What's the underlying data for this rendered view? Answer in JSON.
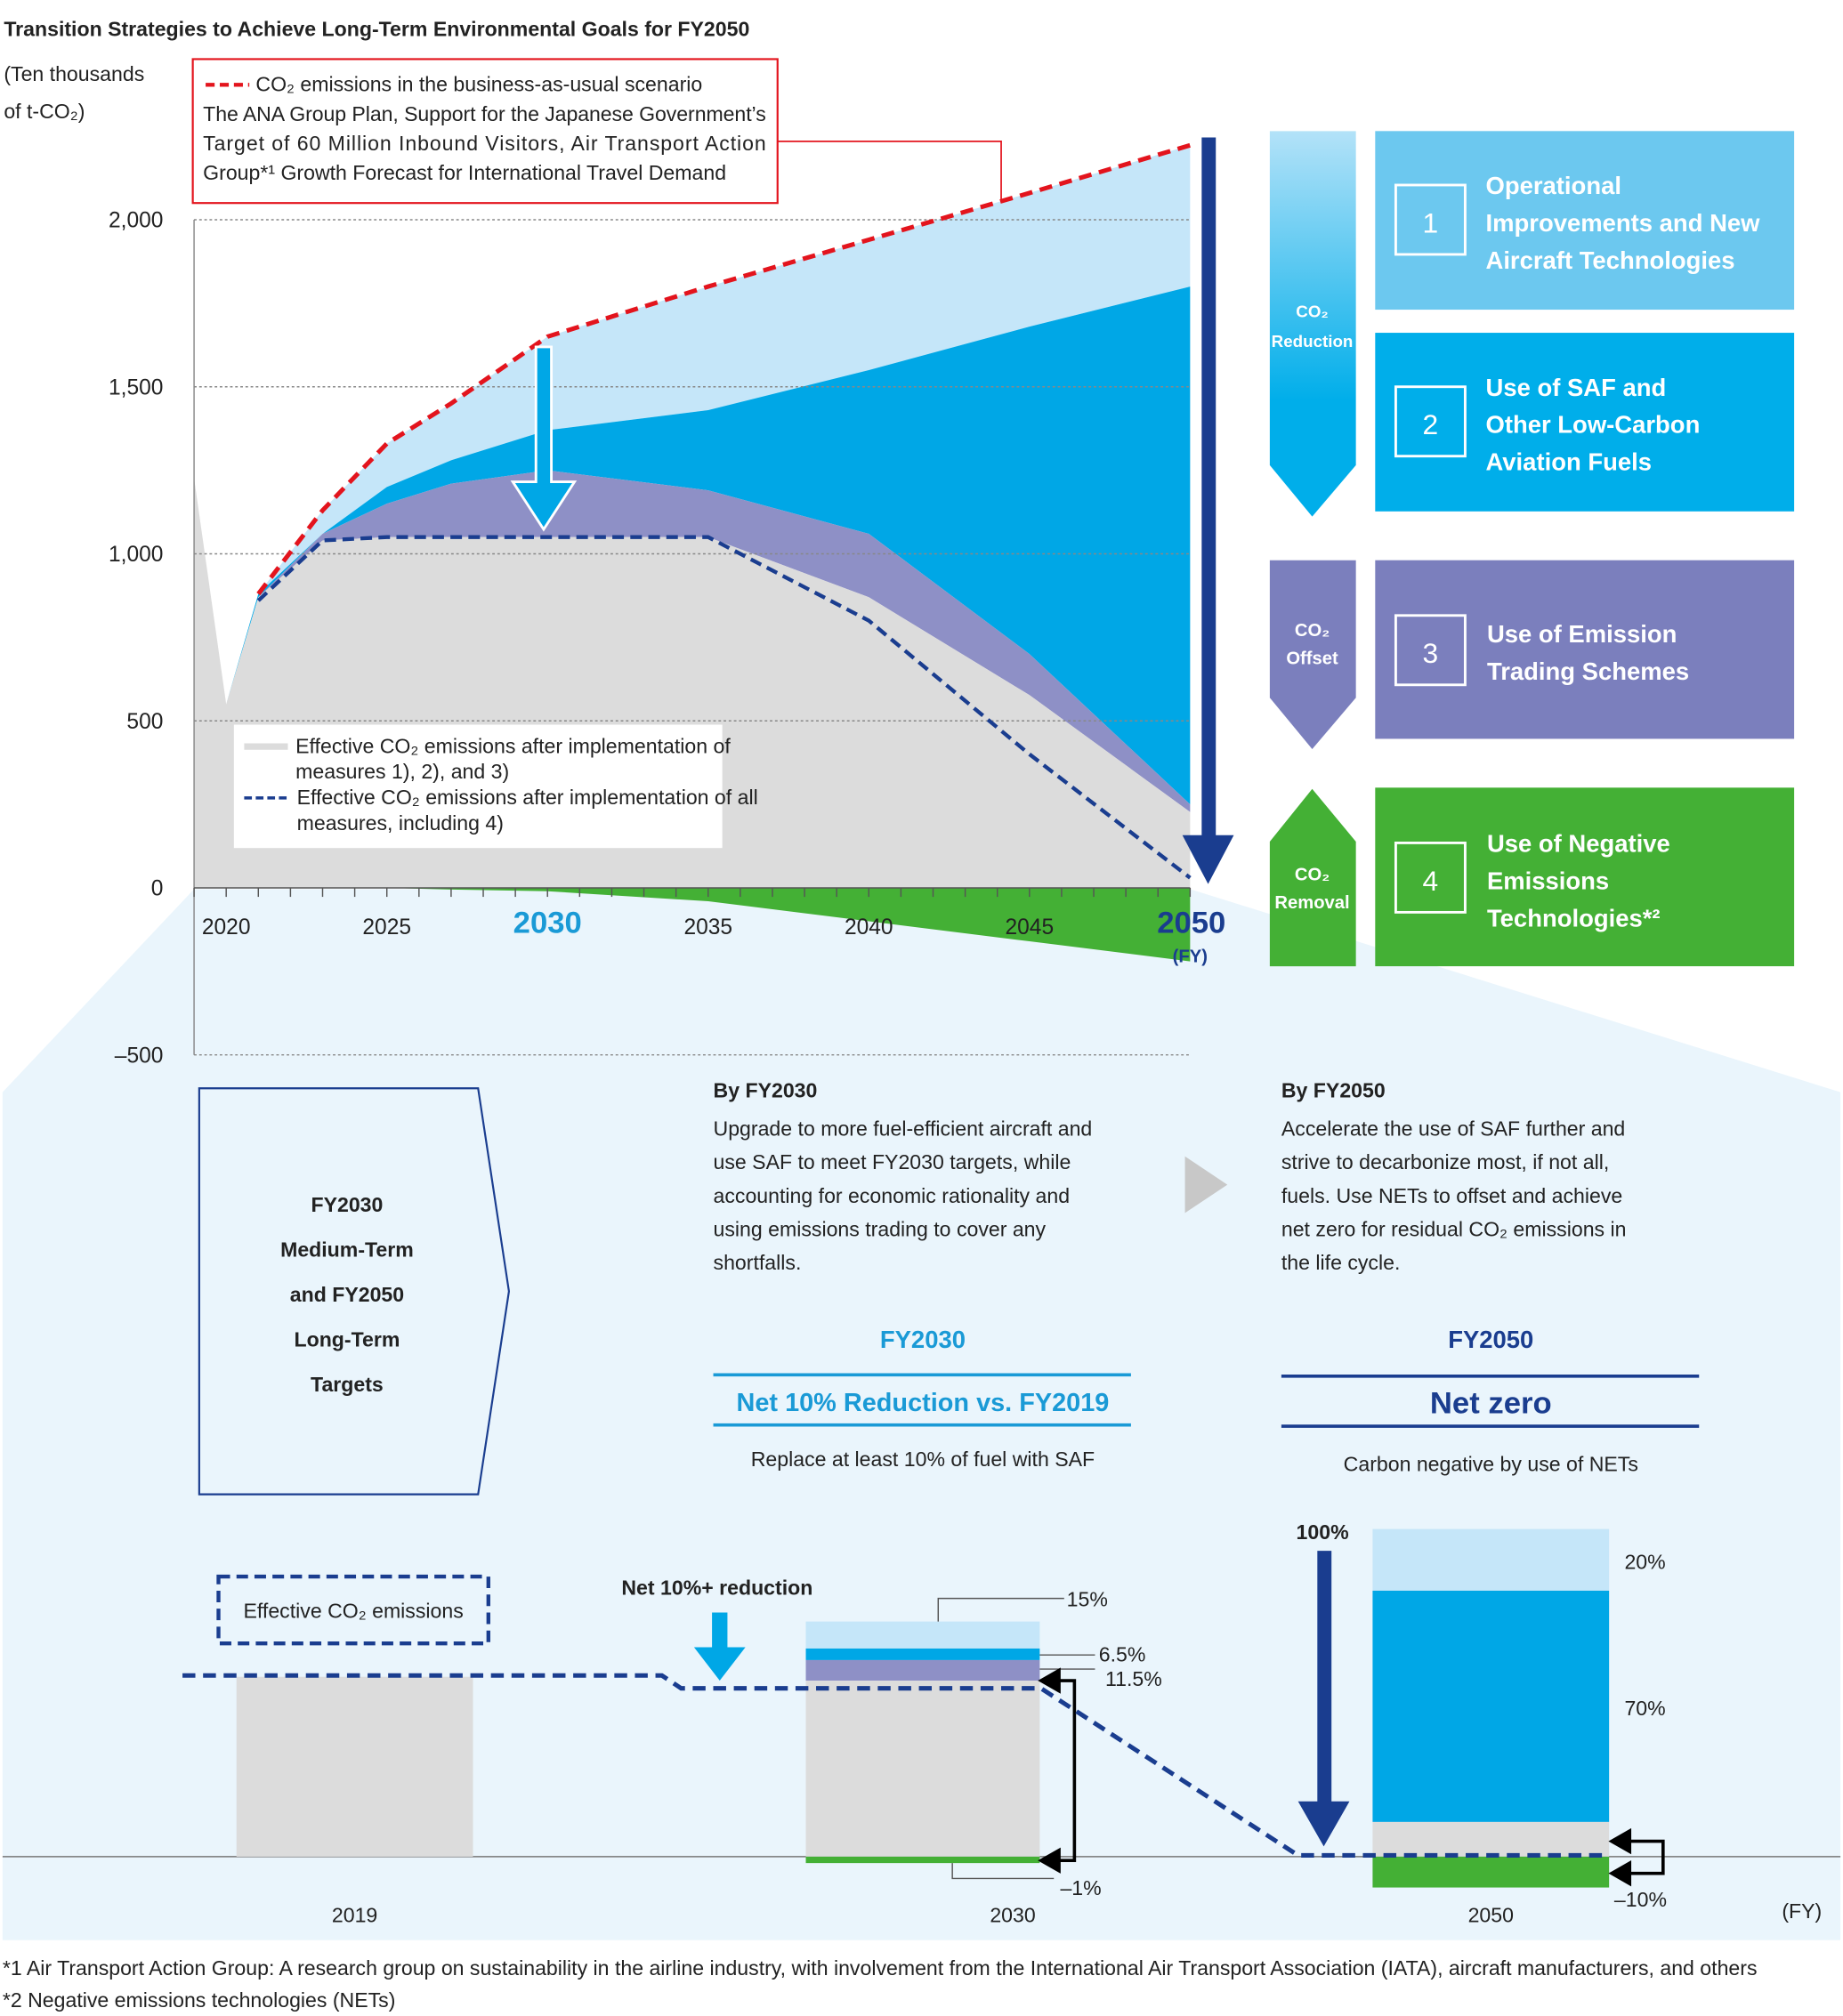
{
  "title": "Transition Strategies to Achieve Long-Term Environmental Goals for FY2050",
  "y_unit": [
    "(Ten thousands",
    "of t-CO₂)"
  ],
  "bau_note": {
    "legend": "CO₂ emissions in the business-as-usual scenario",
    "lines": [
      "The ANA Group Plan, Support for the Japanese Government’s",
      "Target of 60 Million Inbound Visitors, Air Transport Action",
      "Group*¹ Growth Forecast for International Travel Demand"
    ]
  },
  "legend": {
    "gray": [
      "Effective CO₂ emissions after implementation of",
      "measures 1), 2), and 3)"
    ],
    "navy": [
      "Effective CO₂ emissions after implementation of all",
      "measures, including 4)"
    ]
  },
  "colors": {
    "bau": "#e3141d",
    "light_blue": "#c5e6f9",
    "saf": "#00a7e6",
    "ets": "#8e90c6",
    "gray": "#dcdcdc",
    "net": "#44b035",
    "navy": "#1a3d8f",
    "accent": "#1a9ad6"
  },
  "chart_data": {
    "type": "area",
    "ylim": [
      -500,
      2000
    ],
    "yticks": [
      "2,000",
      "1,500",
      "1,000",
      "500",
      "0",
      "–500"
    ],
    "ytick_values": [
      2000,
      1500,
      1000,
      500,
      0,
      -500
    ],
    "xticks": [
      "2020",
      "2025",
      "2030",
      "2035",
      "2040",
      "2045",
      "2050"
    ],
    "xtick_values": [
      2020,
      2025,
      2030,
      2035,
      2040,
      2045,
      2050
    ],
    "highlight_ticks": [
      "2030",
      "2050"
    ],
    "x_unit": "(FY)",
    "x": [
      2019,
      2020,
      2021,
      2023,
      2025,
      2027,
      2030,
      2035,
      2040,
      2045,
      2050
    ],
    "series": {
      "effective_after_1_3": [
        1227,
        550,
        870,
        1040,
        1050,
        1050,
        1050,
        1050,
        870,
        577,
        227
      ],
      "with_ets": [
        1227,
        550,
        870,
        1060,
        1150,
        1210,
        1250,
        1190,
        1060,
        700,
        250
      ],
      "with_saf": [
        1227,
        550,
        880,
        1060,
        1200,
        1280,
        1370,
        1430,
        1550,
        1680,
        1800
      ],
      "bau": [
        null,
        null,
        880,
        1130,
        1330,
        1450,
        1650,
        1800,
        1940,
        2080,
        2223
      ],
      "effective_all": [
        null,
        null,
        860,
        1040,
        1050,
        1050,
        1050,
        1050,
        800,
        400,
        30
      ],
      "negative_emissions": [
        0,
        0,
        0,
        0,
        0,
        -5,
        -10,
        -40,
        -100,
        -160,
        -220
      ]
    }
  },
  "strategies": [
    {
      "num": "1",
      "label": [
        "Operational",
        "Improvements and New",
        "Aircraft Technologies"
      ]
    },
    {
      "num": "2",
      "label": [
        "Use of SAF and",
        "Other Low-Carbon",
        "Aviation Fuels"
      ]
    },
    {
      "num": "3",
      "label": [
        "Use of Emission",
        "Trading Schemes"
      ]
    },
    {
      "num": "4",
      "label": [
        "Use of Negative",
        "Emissions",
        "Technologies*²"
      ]
    }
  ],
  "arrows": {
    "reduction": [
      "CO₂",
      "Reduction"
    ],
    "offset": [
      "CO₂",
      "Offset"
    ],
    "removal": [
      "CO₂",
      "Removal"
    ]
  },
  "targets_box": [
    "FY2030",
    "Medium-Term",
    "and FY2050",
    "Long-Term",
    "Targets"
  ],
  "by2030": {
    "heading": "By FY2030",
    "lines": [
      "Upgrade to more fuel-efficient aircraft and",
      "use SAF to meet FY2030 targets, while",
      "accounting for economic rationality and",
      "using emissions trading to cover any",
      "shortfalls."
    ],
    "year": "FY2030",
    "goal": "Net 10% Reduction vs. FY2019",
    "sub": "Replace at least 10% of fuel with SAF"
  },
  "by2050": {
    "heading": "By FY2050",
    "lines": [
      "Accelerate the use of SAF further and",
      "strive to decarbonize most, if not all,",
      "fuels. Use NETs to offset and achieve",
      "net zero for residual CO₂ emissions in",
      "the life cycle."
    ],
    "year": "FY2050",
    "goal": "Net zero",
    "sub": "Carbon negative by use of NETs"
  },
  "bars": {
    "effective_label": "Effective CO₂ emissions",
    "net_reduction": "Net 10%+ reduction",
    "years": [
      "2019",
      "2030",
      "2050"
    ],
    "fy": "(FY)",
    "bar2030": {
      "light_blue": "15%",
      "saf": "6.5%",
      "ets": "11.5%",
      "net": "–1%"
    },
    "bar2050": {
      "total": "100%",
      "light_blue": "20%",
      "saf": "70%",
      "net": "–10%"
    }
  },
  "footnotes": [
    "*1 Air Transport Action Group: A research group on sustainability in the airline industry, with involvement from the International Air Transport Association (IATA), aircraft manufacturers, and others",
    "*2 Negative emissions technologies (NETs)"
  ]
}
